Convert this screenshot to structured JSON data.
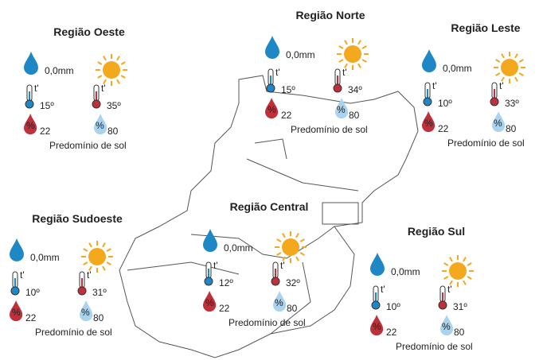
{
  "regions": [
    {
      "name": "Região Oeste",
      "rain": "0,0mm",
      "temp_min": "15º",
      "temp_max": "35º",
      "humidity_min": "22",
      "humidity_max": "80",
      "forecast": "Predomínio de sol"
    },
    {
      "name": "Região Norte",
      "rain": "0,0mm",
      "temp_min": "15º",
      "temp_max": "34º",
      "humidity_min": "22",
      "humidity_max": "80",
      "forecast": "Predomínio de sol"
    },
    {
      "name": "Região Leste",
      "rain": "0,0mm",
      "temp_min": "10º",
      "temp_max": "33º",
      "humidity_min": "22",
      "humidity_max": "80",
      "forecast": "Predomínio de sol"
    },
    {
      "name": "Região Sudoeste",
      "rain": "0,0mm",
      "temp_min": "10º",
      "temp_max": "31º",
      "humidity_min": "22",
      "humidity_max": "80",
      "forecast": "Predomínio de sol"
    },
    {
      "name": "Região Central",
      "rain": "0,0mm",
      "temp_min": "12º",
      "temp_max": "32º",
      "humidity_min": "22",
      "humidity_max": "80",
      "forecast": "Predomínio de sol"
    },
    {
      "name": "Região Sul",
      "rain": "0,0mm",
      "temp_min": "10º",
      "temp_max": "31º",
      "humidity_min": "22",
      "humidity_max": "80",
      "forecast": "Predomínio de sol"
    }
  ],
  "thermometer_label": "t'",
  "humidity_symbol": "%"
}
